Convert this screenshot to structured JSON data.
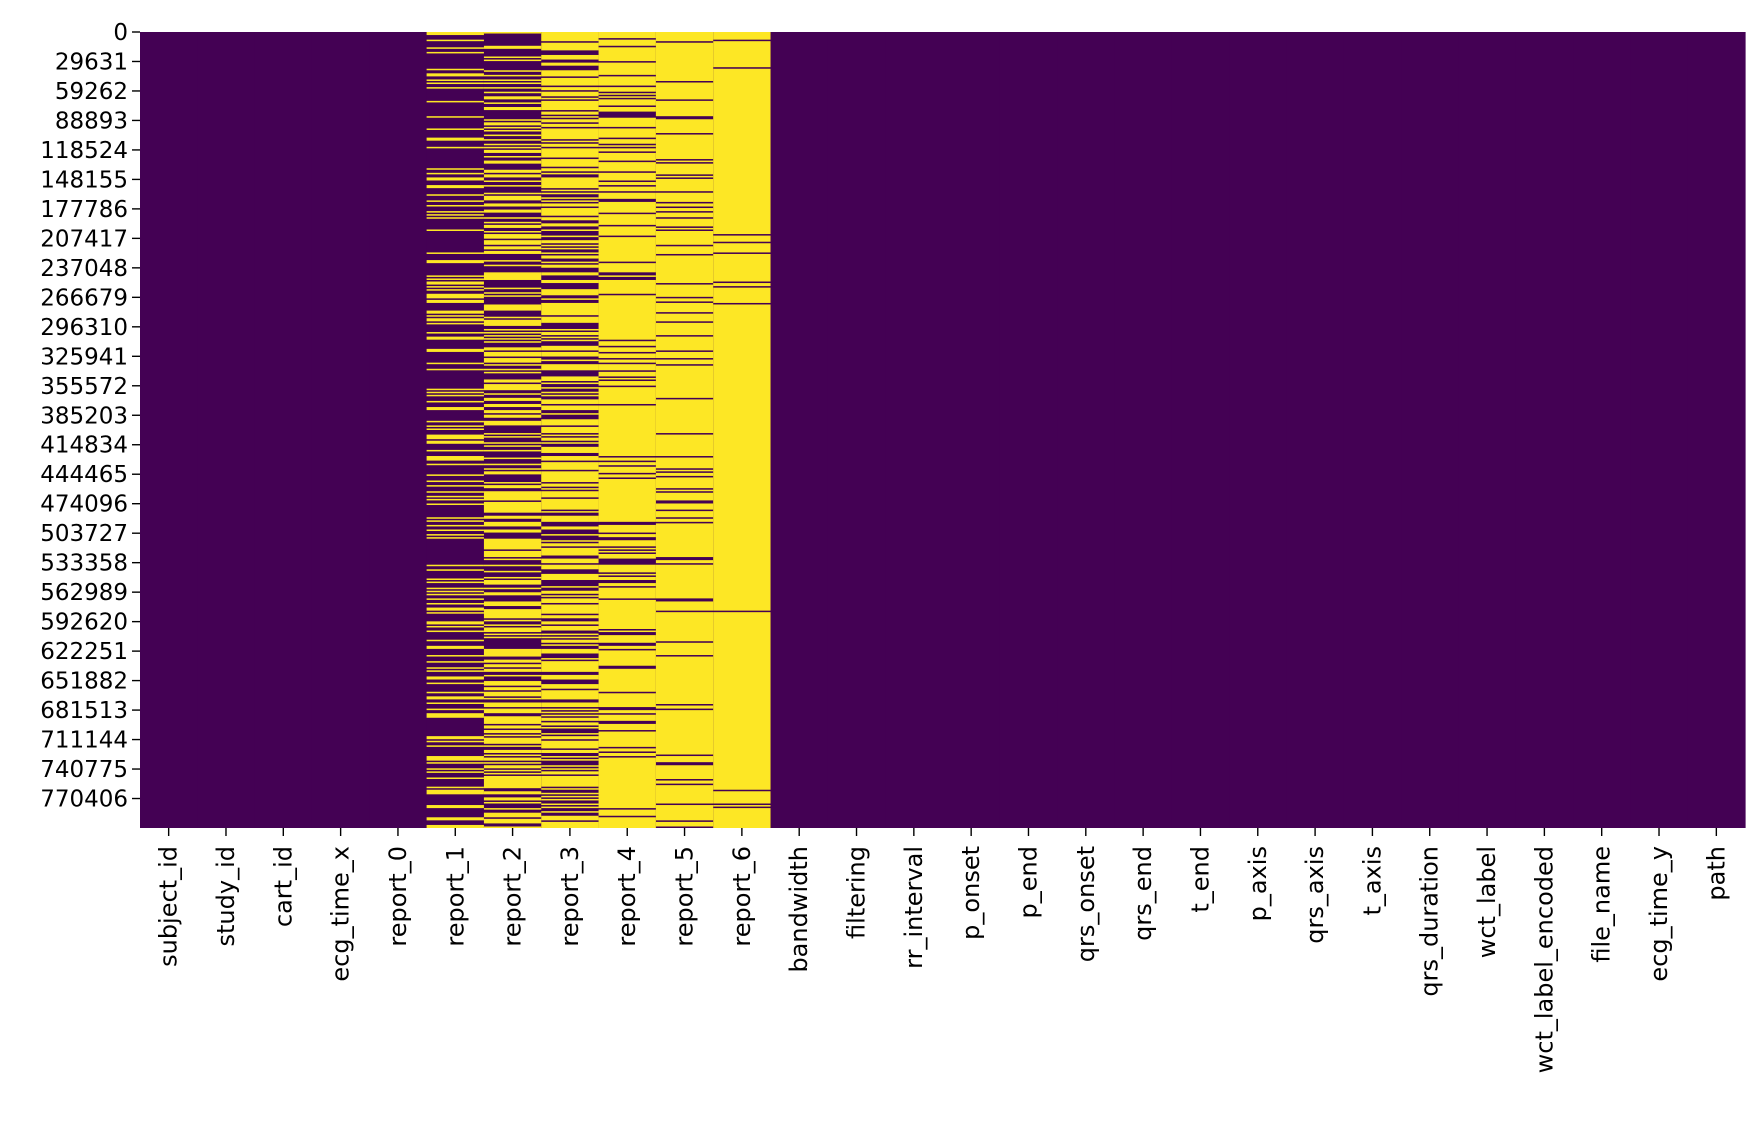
{
  "chart_data": {
    "type": "heatmap",
    "title": "",
    "description_kind": "missing-value map",
    "colors": {
      "present": "#440154",
      "missing": "#fde725"
    },
    "y_tick_labels": [
      "0",
      "29631",
      "59262",
      "88893",
      "118524",
      "148155",
      "177786",
      "207417",
      "237048",
      "266679",
      "296310",
      "325941",
      "355572",
      "385203",
      "414834",
      "444465",
      "474096",
      "503727",
      "533358",
      "562989",
      "592620",
      "622251",
      "651882",
      "681513",
      "711144",
      "740775",
      "770406"
    ],
    "y_range": [
      0,
      800035
    ],
    "columns": [
      "subject_id",
      "study_id",
      "cart_id",
      "ecg_time_x",
      "report_0",
      "report_1",
      "report_2",
      "report_3",
      "report_4",
      "report_5",
      "report_6",
      "bandwidth",
      "filtering",
      "rr_interval",
      "p_onset",
      "p_end",
      "qrs_onset",
      "qrs_end",
      "t_end",
      "p_axis",
      "qrs_axis",
      "t_axis",
      "qrs_duration",
      "wct_label",
      "wct_label_encoded",
      "file_name",
      "ecg_time_y",
      "path"
    ],
    "missing_fraction": {
      "subject_id": 0,
      "study_id": 0,
      "cart_id": 0,
      "ecg_time_x": 0,
      "report_0": 0,
      "report_1": 0.3,
      "report_2": 0.5,
      "report_3": 0.6,
      "report_4": 0.82,
      "report_5": 0.88,
      "report_6": 0.96,
      "bandwidth": 0,
      "filtering": 0,
      "rr_interval": 0,
      "p_onset": 0,
      "p_end": 0,
      "qrs_onset": 0,
      "qrs_end": 0,
      "t_end": 0,
      "p_axis": 0,
      "qrs_axis": 0,
      "t_axis": 0,
      "qrs_duration": 0,
      "wct_label": 0,
      "wct_label_encoded": 0,
      "file_name": 0,
      "ecg_time_y": 0,
      "path": 0
    }
  }
}
